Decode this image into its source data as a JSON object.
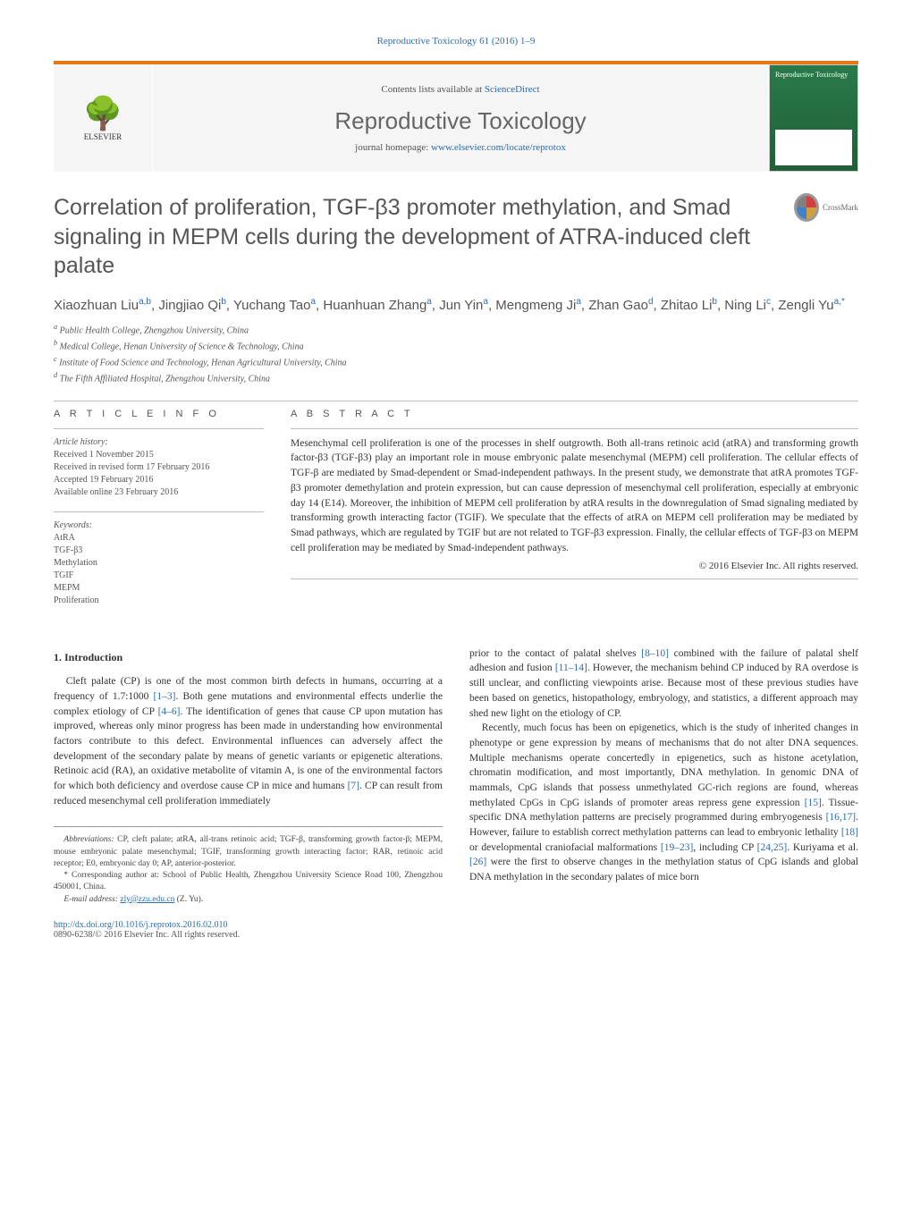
{
  "header_citation": "Reproductive Toxicology 61 (2016) 1–9",
  "contents_prefix": "Contents lists available at ",
  "contents_link": "ScienceDirect",
  "journal_name": "Reproductive Toxicology",
  "homepage_prefix": "journal homepage: ",
  "homepage_link": "www.elsevier.com/locate/reprotox",
  "publisher_name": "ELSEVIER",
  "cover_title": "Reproductive Toxicology",
  "crossmark_label": "CrossMark",
  "title": "Correlation of proliferation, TGF-β3 promoter methylation, and Smad signaling in MEPM cells during the development of ATRA-induced cleft palate",
  "authors_html": "Xiaozhuan Liu<sup>a,b</sup>, Jingjiao Qi<sup>b</sup>, Yuchang Tao<sup>a</sup>, Huanhuan Zhang<sup>a</sup>, Jun Yin<sup>a</sup>, Mengmeng Ji<sup>a</sup>, Zhan Gao<sup>d</sup>, Zhitao Li<sup>b</sup>, Ning Li<sup>c</sup>, Zengli Yu<sup>a,*</sup>",
  "affiliations": [
    "a Public Health College, Zhengzhou University, China",
    "b Medical College, Henan University of Science & Technology, China",
    "c Institute of Food Science and Technology, Henan Agricultural University, China",
    "d The Fifth Affiliated Hospital, Zhengzhou University, China"
  ],
  "info_head": "A R T I C L E  I N F O",
  "abstract_head": "A B S T R A C T",
  "history_label": "Article history:",
  "history": [
    "Received 1 November 2015",
    "Received in revised form 17 February 2016",
    "Accepted 19 February 2016",
    "Available online 23 February 2016"
  ],
  "keywords_label": "Keywords:",
  "keywords": [
    "AtRA",
    "TGF-β3",
    "Methylation",
    "TGIF",
    "MEPM",
    "Proliferation"
  ],
  "abstract": "Mesenchymal cell proliferation is one of the processes in shelf outgrowth. Both all-trans retinoic acid (atRA) and transforming growth factor-β3 (TGF-β3) play an important role in mouse embryonic palate mesenchymal (MEPM) cell proliferation. The cellular effects of TGF-β are mediated by Smad-dependent or Smad-independent pathways. In the present study, we demonstrate that atRA promotes TGF-β3 promoter demethylation and protein expression, but can cause depression of mesenchymal cell proliferation, especially at embryonic day 14 (E14). Moreover, the inhibition of MEPM cell proliferation by atRA results in the downregulation of Smad signaling mediated by transforming growth interacting factor (TGIF). We speculate that the effects of atRA on MEPM cell proliferation may be mediated by Smad pathways, which are regulated by TGIF but are not related to TGF-β3 expression. Finally, the cellular effects of TGF-β3 on MEPM cell proliferation may be mediated by Smad-independent pathways.",
  "copyright": "© 2016 Elsevier Inc. All rights reserved.",
  "intro_head": "1. Introduction",
  "intro_p1a": "Cleft palate (CP) is one of the most common birth defects in humans, occurring at a frequency of 1.7:1000 ",
  "intro_ref1": "[1–3]",
  "intro_p1b": ". Both gene mutations and environmental effects underlie the complex etiology of CP ",
  "intro_ref2": "[4–6]",
  "intro_p1c": ". The identification of genes that cause CP upon mutation has improved, whereas only minor progress has been made in understanding how environmental factors contribute to this defect. Environmental influences can adversely affect the development of the secondary palate by means of genetic variants or epigenetic alterations. Retinoic acid (RA), an oxidative metabolite of vitamin A, is one of the environmental factors for which both deficiency and overdose cause CP in mice and humans ",
  "intro_ref3": "[7]",
  "intro_p1d": ". CP can result from reduced mesenchymal cell proliferation immediately",
  "col2_p1a": "prior to the contact of palatal shelves ",
  "col2_ref1": "[8–10]",
  "col2_p1b": " combined with the failure of palatal shelf adhesion and fusion ",
  "col2_ref2": "[11–14]",
  "col2_p1c": ". However, the mechanism behind CP induced by RA overdose is still unclear, and conflicting viewpoints arise. Because most of these previous studies have been based on genetics, histopathology, embryology, and statistics, a different approach may shed new light on the etiology of CP.",
  "col2_p2a": "Recently, much focus has been on epigenetics, which is the study of inherited changes in phenotype or gene expression by means of mechanisms that do not alter DNA sequences. Multiple mechanisms operate concertedly in epigenetics, such as histone acetylation, chromatin modification, and most importantly, DNA methylation. In genomic DNA of mammals, CpG islands that possess unmethylated GC-rich regions are found, whereas methylated CpGs in CpG islands of promoter areas repress gene expression ",
  "col2_ref3": "[15]",
  "col2_p2b": ". Tissue-specific DNA methylation patterns are precisely programmed during embryogenesis ",
  "col2_ref4": "[16,17]",
  "col2_p2c": ". However, failure to establish correct methylation patterns can lead to embryonic lethality ",
  "col2_ref5": "[18]",
  "col2_p2d": " or developmental craniofacial malformations ",
  "col2_ref6": "[19–23]",
  "col2_p2e": ", including CP ",
  "col2_ref7": "[24,25]",
  "col2_p2f": ". Kuriyama et al. ",
  "col2_ref8": "[26]",
  "col2_p2g": " were the first to observe changes in the methylation status of CpG islands and global DNA methylation in the secondary palates of mice born",
  "abbrev_label": "Abbreviations:",
  "abbrev_text": " CP, cleft palate; atRA, all-trans retinoic acid; TGF-β, transforming growth factor-β; MEPM, mouse embryonic palate mesenchymal; TGIF, transforming growth interacting factor; RAR, retinoic acid receptor; E0, embryonic day 0; AP, anterior-posterior.",
  "corr_marker": "*",
  "corr_text": " Corresponding author at: School of Public Health, Zhengzhou University Science Road 100, Zhengzhou 450001, China.",
  "email_label": "E-mail address:",
  "email_value": "zly@zzu.edu.cn",
  "email_suffix": " (Z. Yu).",
  "doi": "http://dx.doi.org/10.1016/j.reprotox.2016.02.010",
  "issn_line": "0890-6238/© 2016 Elsevier Inc. All rights reserved.",
  "colors": {
    "accent": "#e67817",
    "link": "#2b6cb0",
    "text": "#333333",
    "muted": "#555555"
  }
}
